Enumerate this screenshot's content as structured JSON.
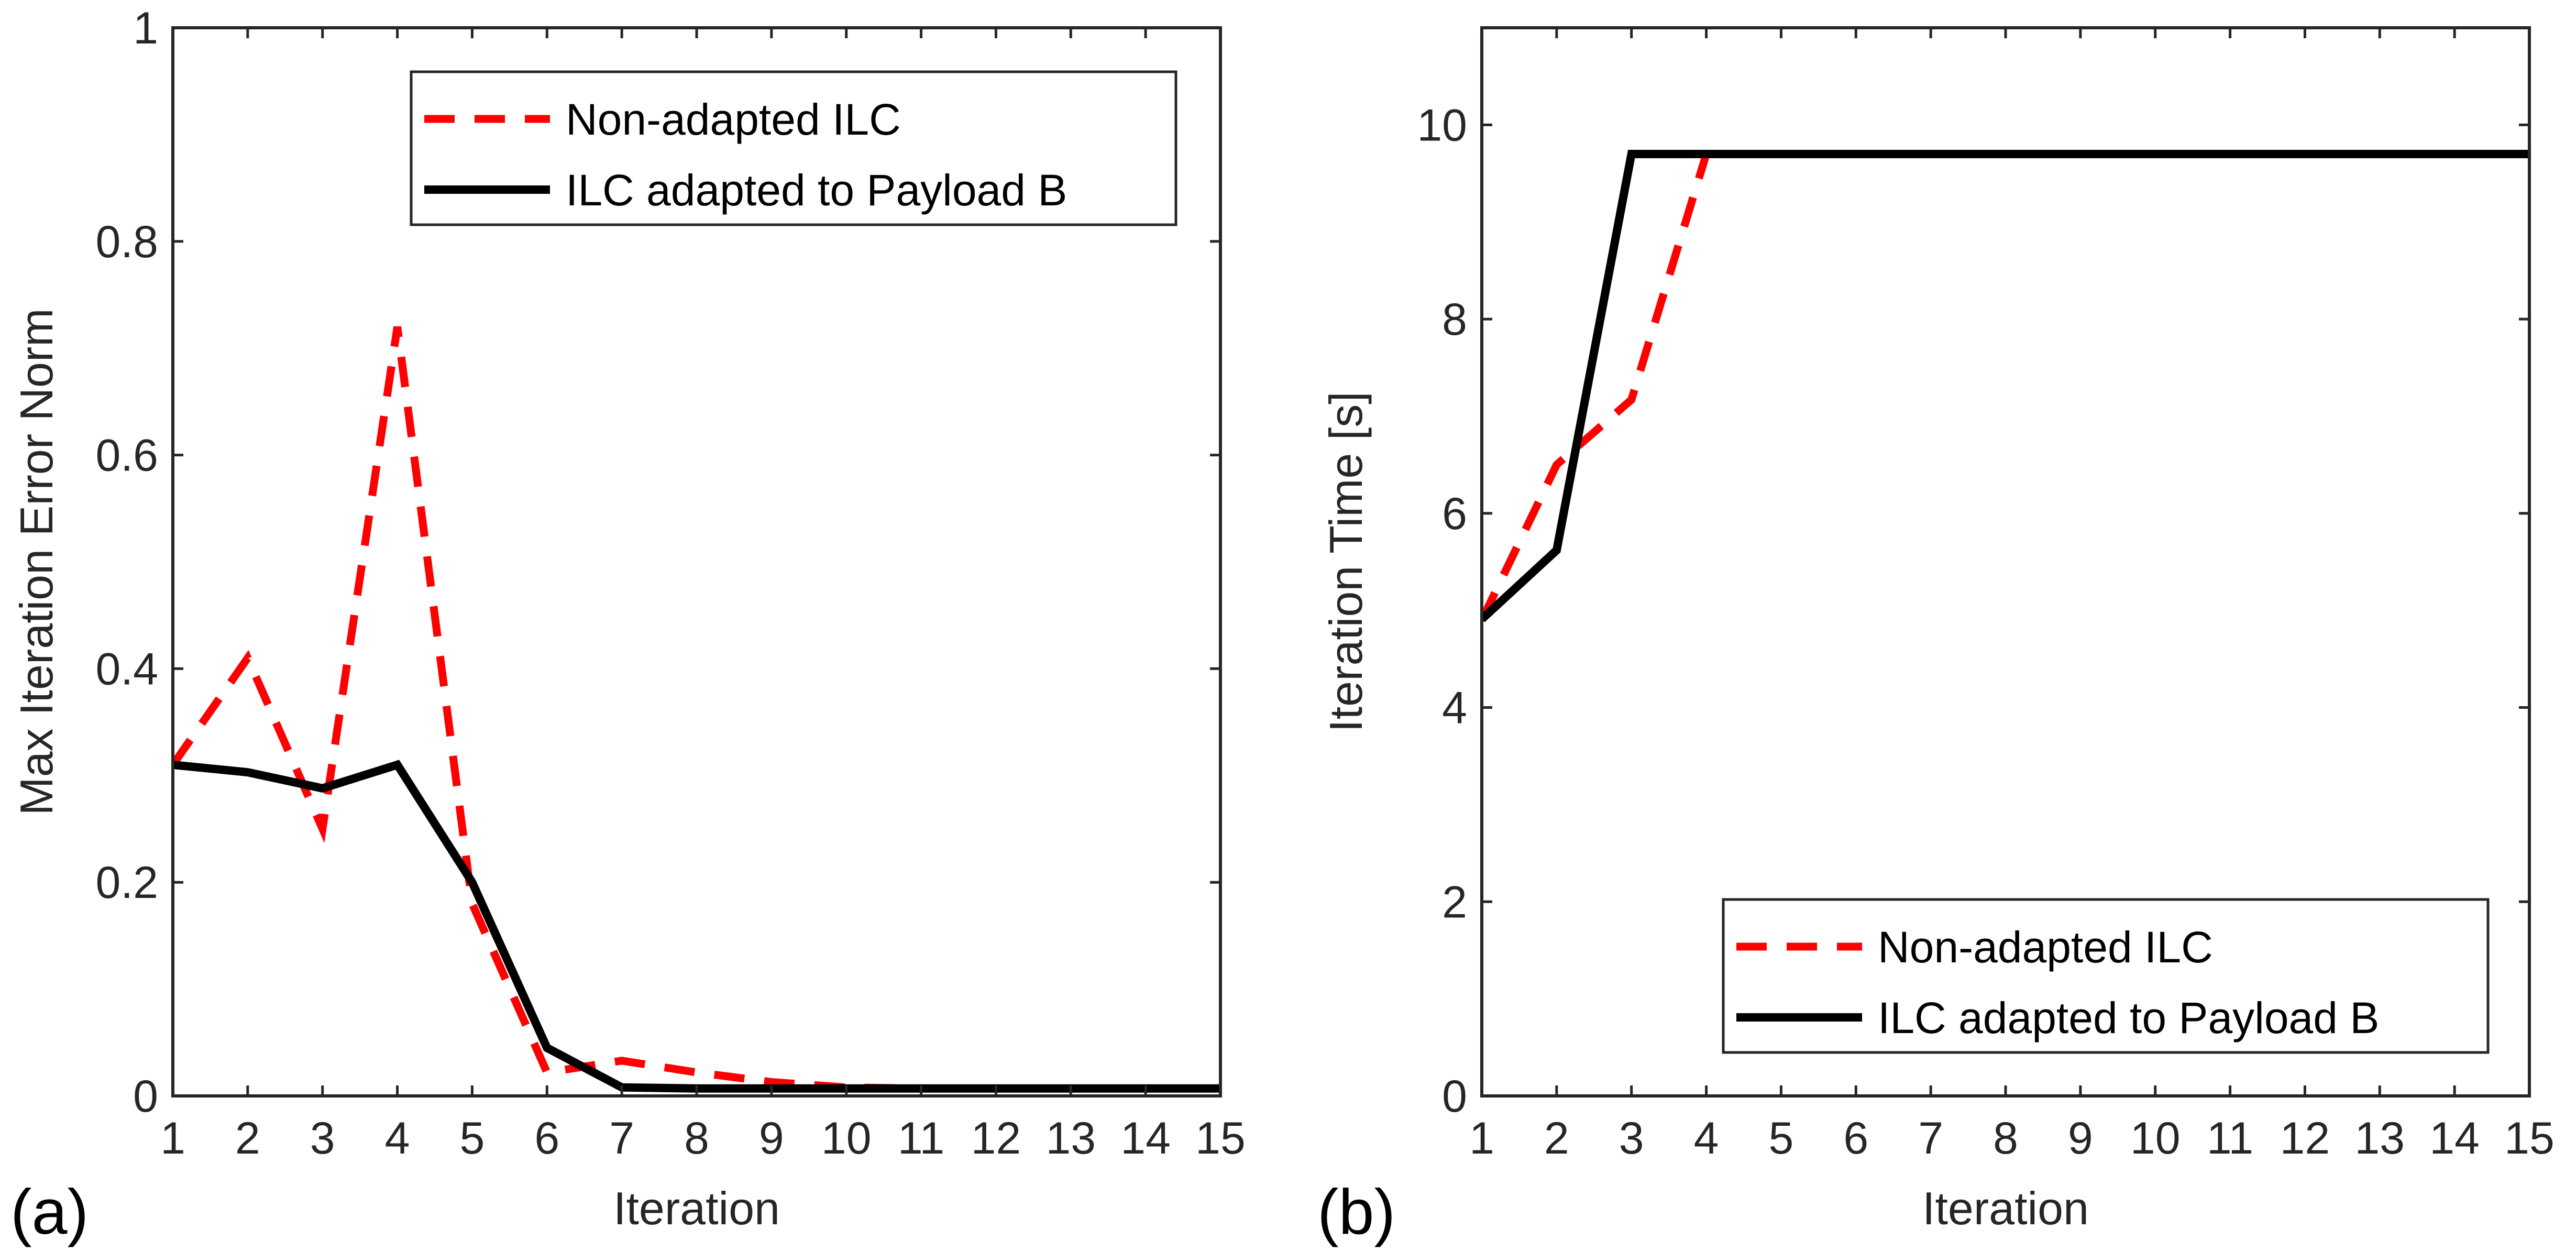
{
  "chart_data": [
    {
      "type": "line",
      "panel_label": "(a)",
      "title": "",
      "xlabel": "Iteration",
      "ylabel": "Max Iteration Error Norm",
      "xlim": [
        1,
        15
      ],
      "ylim": [
        0,
        1
      ],
      "x": [
        1,
        2,
        3,
        4,
        5,
        6,
        7,
        8,
        9,
        10,
        11,
        12,
        13,
        14,
        15
      ],
      "xticks": [
        "1",
        "2",
        "3",
        "4",
        "5",
        "6",
        "7",
        "8",
        "9",
        "10",
        "11",
        "12",
        "13",
        "14",
        "15"
      ],
      "yticks": [
        "0",
        "0.2",
        "0.4",
        "0.6",
        "0.8",
        "1"
      ],
      "ytick_values": [
        0,
        0.2,
        0.4,
        0.6,
        0.8,
        1
      ],
      "grid": false,
      "legend_position": "top-right",
      "series": [
        {
          "name": "Non-adapted ILC",
          "color": "#ff0000",
          "style": "dashed",
          "values": [
            0.31,
            0.41,
            0.25,
            0.72,
            0.18,
            0.022,
            0.033,
            0.022,
            0.013,
            0.008,
            0.007,
            0.007,
            0.007,
            0.007,
            0.007
          ]
        },
        {
          "name": "ILC adapted to Payload B",
          "color": "#000000",
          "style": "solid",
          "values": [
            0.31,
            0.303,
            0.288,
            0.31,
            0.2,
            0.045,
            0.008,
            0.007,
            0.007,
            0.007,
            0.007,
            0.007,
            0.007,
            0.007,
            0.007
          ]
        }
      ]
    },
    {
      "type": "line",
      "panel_label": "(b)",
      "title": "",
      "xlabel": "Iteration",
      "ylabel": "Iteration Time [s]",
      "xlim": [
        1,
        15
      ],
      "ylim": [
        0,
        11
      ],
      "x": [
        1,
        2,
        3,
        4,
        5,
        6,
        7,
        8,
        9,
        10,
        11,
        12,
        13,
        14,
        15
      ],
      "xticks": [
        "1",
        "2",
        "3",
        "4",
        "5",
        "6",
        "7",
        "8",
        "9",
        "10",
        "11",
        "12",
        "13",
        "14",
        "15"
      ],
      "yticks": [
        "0",
        "2",
        "4",
        "6",
        "8",
        "10"
      ],
      "ytick_values": [
        0,
        2,
        4,
        6,
        8,
        10
      ],
      "grid": false,
      "legend_position": "bottom-right",
      "series": [
        {
          "name": "Non-adapted ILC",
          "color": "#ff0000",
          "style": "dashed",
          "values": [
            4.9,
            6.5,
            7.17,
            9.7,
            9.7,
            9.7,
            9.7,
            9.7,
            9.7,
            9.7,
            9.7,
            9.7,
            9.7,
            9.7,
            9.7
          ]
        },
        {
          "name": "ILC adapted to Payload B",
          "color": "#000000",
          "style": "solid",
          "values": [
            4.91,
            5.62,
            9.7,
            9.7,
            9.7,
            9.7,
            9.7,
            9.7,
            9.7,
            9.7,
            9.7,
            9.7,
            9.7,
            9.7,
            9.7
          ]
        }
      ]
    }
  ]
}
